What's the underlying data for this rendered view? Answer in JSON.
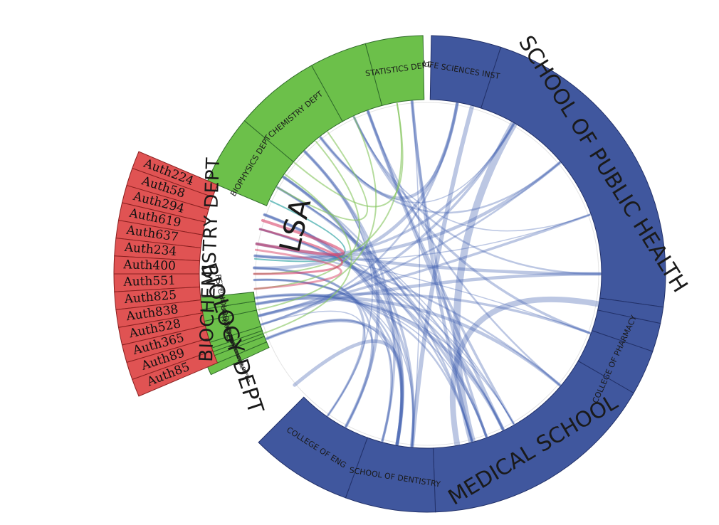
{
  "colors": {
    "green": "#6cc04a",
    "green_stroke": "#2f6b2a",
    "blue": "#40579e",
    "blue_stroke": "#223169",
    "red": "#e05353",
    "red_stroke": "#8a2020",
    "chord_blue": "#3f5fb0",
    "chord_green": "#84c55c",
    "chord_red": "#d9456a",
    "chord_teal": "#3aa8a8"
  },
  "groups": {
    "lsa": "LSA",
    "lsa_dept": "BIOCHEMISTRY DEPT"
  },
  "authors": [
    "Auth224",
    "Auth58",
    "Auth294",
    "Auth619",
    "Auth637",
    "Auth234",
    "Auth400",
    "Auth551",
    "Auth825",
    "Auth838",
    "Auth528",
    "Auth365",
    "Auth89",
    "Auth85"
  ],
  "green_top": [
    {
      "label": "BIOPHYSICS DEPT",
      "size": "small"
    },
    {
      "label": "CHEMISTRY DEPT",
      "size": "small"
    },
    {
      "label": "",
      "size": "tiny"
    },
    {
      "label": "STATISTICS DEPT",
      "size": "small"
    }
  ],
  "green_bottom": [
    {
      "label": "MATHEMATICS DEPT",
      "size": "tiny"
    },
    {
      "label": "ECOLOGY & EVOLUTIONARY BIO",
      "size": "tiny"
    },
    {
      "label": "ZOOLOGY MUSEUM",
      "size": "tiny"
    },
    {
      "label": "BIOLOGICAL CHEMISTRY DEPT",
      "size": "tiny"
    },
    {
      "label": "BIOLOGY DEPT",
      "size": "big"
    },
    {
      "label": "SOCIOLOGY DEPT",
      "size": "tiny"
    },
    {
      "label": "PSYCHOLOGY DEPT",
      "size": "small"
    },
    {
      "label": "PHYSICS DEPT",
      "size": "tiny"
    }
  ],
  "blue": [
    {
      "label": "LIFE SCIENCES INST",
      "size": "small"
    },
    {
      "label": "SCHOOL OF PUBLIC HEALTH",
      "size": "big"
    },
    {
      "label": "",
      "size": "tiny"
    },
    {
      "label": "",
      "size": "tiny"
    },
    {
      "label": "COLLEGE OF PHARMACY",
      "size": "small"
    },
    {
      "label": "MEDICAL SCHOOL",
      "size": "big"
    },
    {
      "label": "SCHOOL OF DENTISTRY",
      "size": "small"
    },
    {
      "label": "COLLEGE OF ENG",
      "size": "small"
    }
  ]
}
